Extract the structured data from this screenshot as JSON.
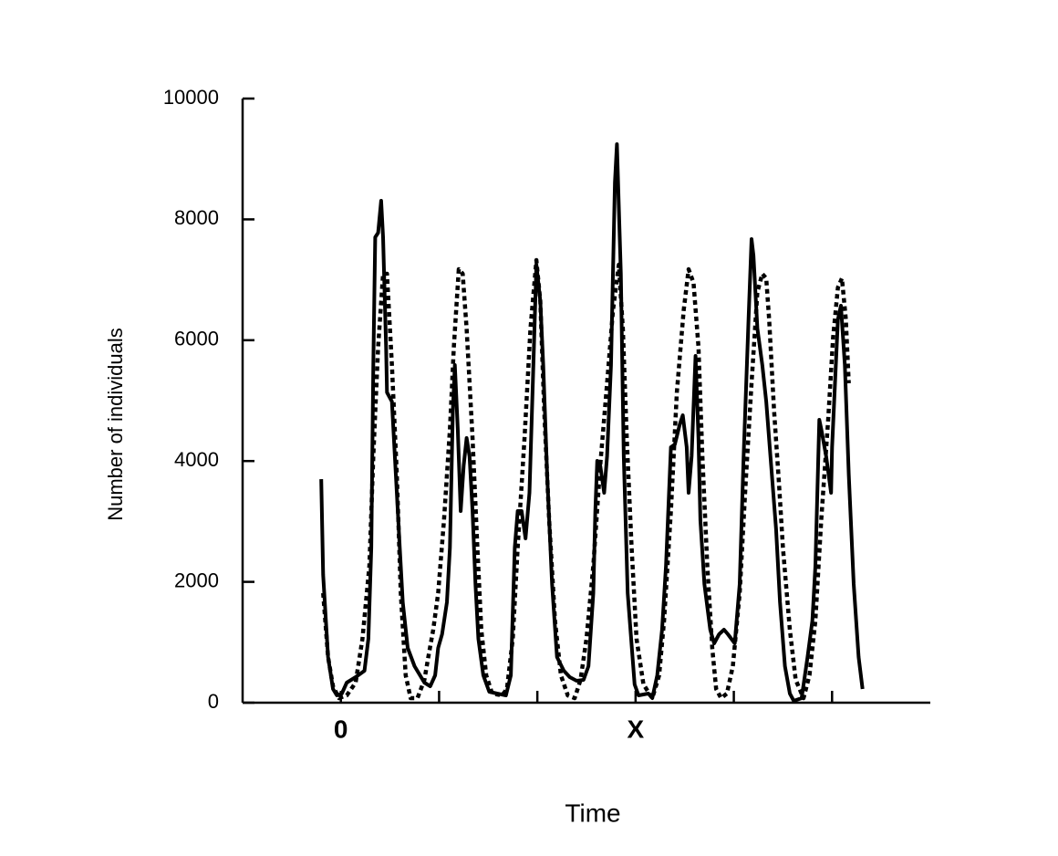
{
  "chart_data": {
    "type": "line",
    "xlabel": "Time",
    "ylabel": "Number of individuals",
    "xlim": [
      -1,
      6
    ],
    "ylim": [
      0,
      10000
    ],
    "xticks": [
      0,
      {
        "value": 1,
        "label": null
      },
      {
        "value": 2,
        "label": null
      },
      {
        "value": 3,
        "label": "X"
      },
      {
        "value": 4,
        "label": null
      },
      {
        "value": 5,
        "label": null
      }
    ],
    "yticks": [
      0,
      2000,
      4000,
      6000,
      8000,
      10000
    ],
    "series": [
      {
        "color": "#000000",
        "dash": "solid",
        "x": [
          -0.2,
          -0.18,
          -0.13,
          -0.08,
          -0.04,
          0.01,
          0.06,
          0.15,
          0.24,
          0.28,
          0.31,
          0.33,
          0.35,
          0.38,
          0.41,
          0.43,
          0.46,
          0.47,
          0.52,
          0.56,
          0.6,
          0.63,
          0.68,
          0.75,
          0.85,
          0.91,
          0.96,
          0.99,
          1.03,
          1.08,
          1.11,
          1.14,
          1.16,
          1.19,
          1.22,
          1.25,
          1.28,
          1.31,
          1.34,
          1.37,
          1.4,
          1.45,
          1.51,
          1.59,
          1.68,
          1.73,
          1.77,
          1.8,
          1.84,
          1.88,
          1.92,
          1.96,
          1.99,
          2.03,
          2.06,
          2.1,
          2.15,
          2.2,
          2.27,
          2.33,
          2.4,
          2.47,
          2.52,
          2.57,
          2.59,
          2.61,
          2.64,
          2.68,
          2.71,
          2.75,
          2.79,
          2.81,
          2.85,
          2.88,
          2.92,
          2.99,
          3.03,
          3.13,
          3.17,
          3.22,
          3.27,
          3.31,
          3.36,
          3.4,
          3.45,
          3.48,
          3.52,
          3.54,
          3.57,
          3.61,
          3.64,
          3.66,
          3.7,
          3.76,
          3.8,
          3.85,
          3.9,
          3.94,
          4.01,
          4.06,
          4.1,
          4.15,
          4.18,
          4.2,
          4.24,
          4.29,
          4.33,
          4.38,
          4.43,
          4.47,
          4.52,
          4.57,
          4.61,
          4.69,
          4.75,
          4.8,
          4.83,
          4.87,
          4.89,
          4.94,
          4.99,
          5.0,
          5.03,
          5.06,
          5.09,
          5.13,
          5.17,
          5.22,
          5.27,
          5.31
        ],
        "values": [
          3700,
          2115,
          755,
          227,
          121,
          151,
          332,
          423,
          529,
          1057,
          2568,
          5589,
          7704,
          7780,
          8308,
          7704,
          5891,
          5136,
          4985,
          3777,
          2568,
          1662,
          906,
          604,
          332,
          272,
          453,
          906,
          1133,
          1662,
          2568,
          4834,
          5589,
          4532,
          3172,
          3928,
          4381,
          4079,
          3172,
          1964,
          1057,
          453,
          181,
          151,
          121,
          453,
          2568,
          3172,
          3172,
          2719,
          3474,
          5589,
          7251,
          6647,
          5589,
          3777,
          1964,
          755,
          529,
          423,
          363,
          378,
          604,
          1813,
          3172,
          4003,
          3928,
          3474,
          4079,
          5589,
          8610,
          9245,
          7100,
          4079,
          1813,
          302,
          121,
          151,
          76,
          453,
          1208,
          2266,
          4230,
          4275,
          4607,
          4758,
          4230,
          3474,
          4079,
          5740,
          4381,
          3021,
          1964,
          1208,
          982,
          1133,
          1208,
          1133,
          982,
          1964,
          4079,
          6345,
          7674,
          7402,
          6193,
          5589,
          4985,
          3928,
          2870,
          1662,
          604,
          151,
          30,
          76,
          755,
          1360,
          2266,
          4683,
          4532,
          4079,
          3474,
          4230,
          5287,
          6345,
          6571,
          5589,
          3777,
          1964,
          755,
          227
        ]
      },
      {
        "color": "#000000",
        "dash": "dotted",
        "x": [
          -0.18,
          -0.13,
          -0.08,
          -0.02,
          0.06,
          0.15,
          0.22,
          0.29,
          0.33,
          0.38,
          0.43,
          0.47,
          0.52,
          0.57,
          0.61,
          0.66,
          0.71,
          0.78,
          0.85,
          0.89,
          0.94,
          0.99,
          1.05,
          1.11,
          1.15,
          1.2,
          1.24,
          1.28,
          1.34,
          1.39,
          1.43,
          1.48,
          1.54,
          1.64,
          1.69,
          1.75,
          1.8,
          1.87,
          1.93,
          1.99,
          2.03,
          2.07,
          2.12,
          2.18,
          2.24,
          2.31,
          2.38,
          2.44,
          2.5,
          2.57,
          2.64,
          2.71,
          2.77,
          2.83,
          2.87,
          2.91,
          2.96,
          3.01,
          3.08,
          3.17,
          3.24,
          3.29,
          3.36,
          3.42,
          3.49,
          3.54,
          3.59,
          3.64,
          3.68,
          3.73,
          3.78,
          3.82,
          3.87,
          3.93,
          3.99,
          4.06,
          4.12,
          4.18,
          4.24,
          4.29,
          4.33,
          4.36,
          4.41,
          4.46,
          4.5,
          4.57,
          4.63,
          4.71,
          4.77,
          4.83,
          4.89,
          4.96,
          5.01,
          5.06,
          5.1,
          5.14,
          5.17
        ],
        "values": [
          1813,
          755,
          272,
          76,
          121,
          332,
          1057,
          2266,
          4079,
          5891,
          7100,
          7100,
          5589,
          3777,
          1813,
          453,
          76,
          76,
          378,
          755,
          1208,
          1813,
          3021,
          4532,
          5891,
          7175,
          7100,
          6193,
          4381,
          2568,
          1208,
          453,
          151,
          121,
          227,
          1057,
          2568,
          4381,
          6193,
          7326,
          6647,
          4834,
          3021,
          1360,
          453,
          121,
          76,
          378,
          1057,
          2266,
          3928,
          5287,
          6496,
          7251,
          6193,
          4381,
          2568,
          1057,
          302,
          76,
          453,
          1360,
          3172,
          5136,
          6496,
          7175,
          6949,
          5891,
          4079,
          2266,
          906,
          227,
          76,
          151,
          604,
          1813,
          3625,
          5287,
          6798,
          7100,
          7024,
          6345,
          4834,
          3625,
          2568,
          1208,
          378,
          76,
          453,
          1360,
          3021,
          4683,
          6042,
          6873,
          7024,
          6345,
          5287
        ]
      }
    ]
  }
}
